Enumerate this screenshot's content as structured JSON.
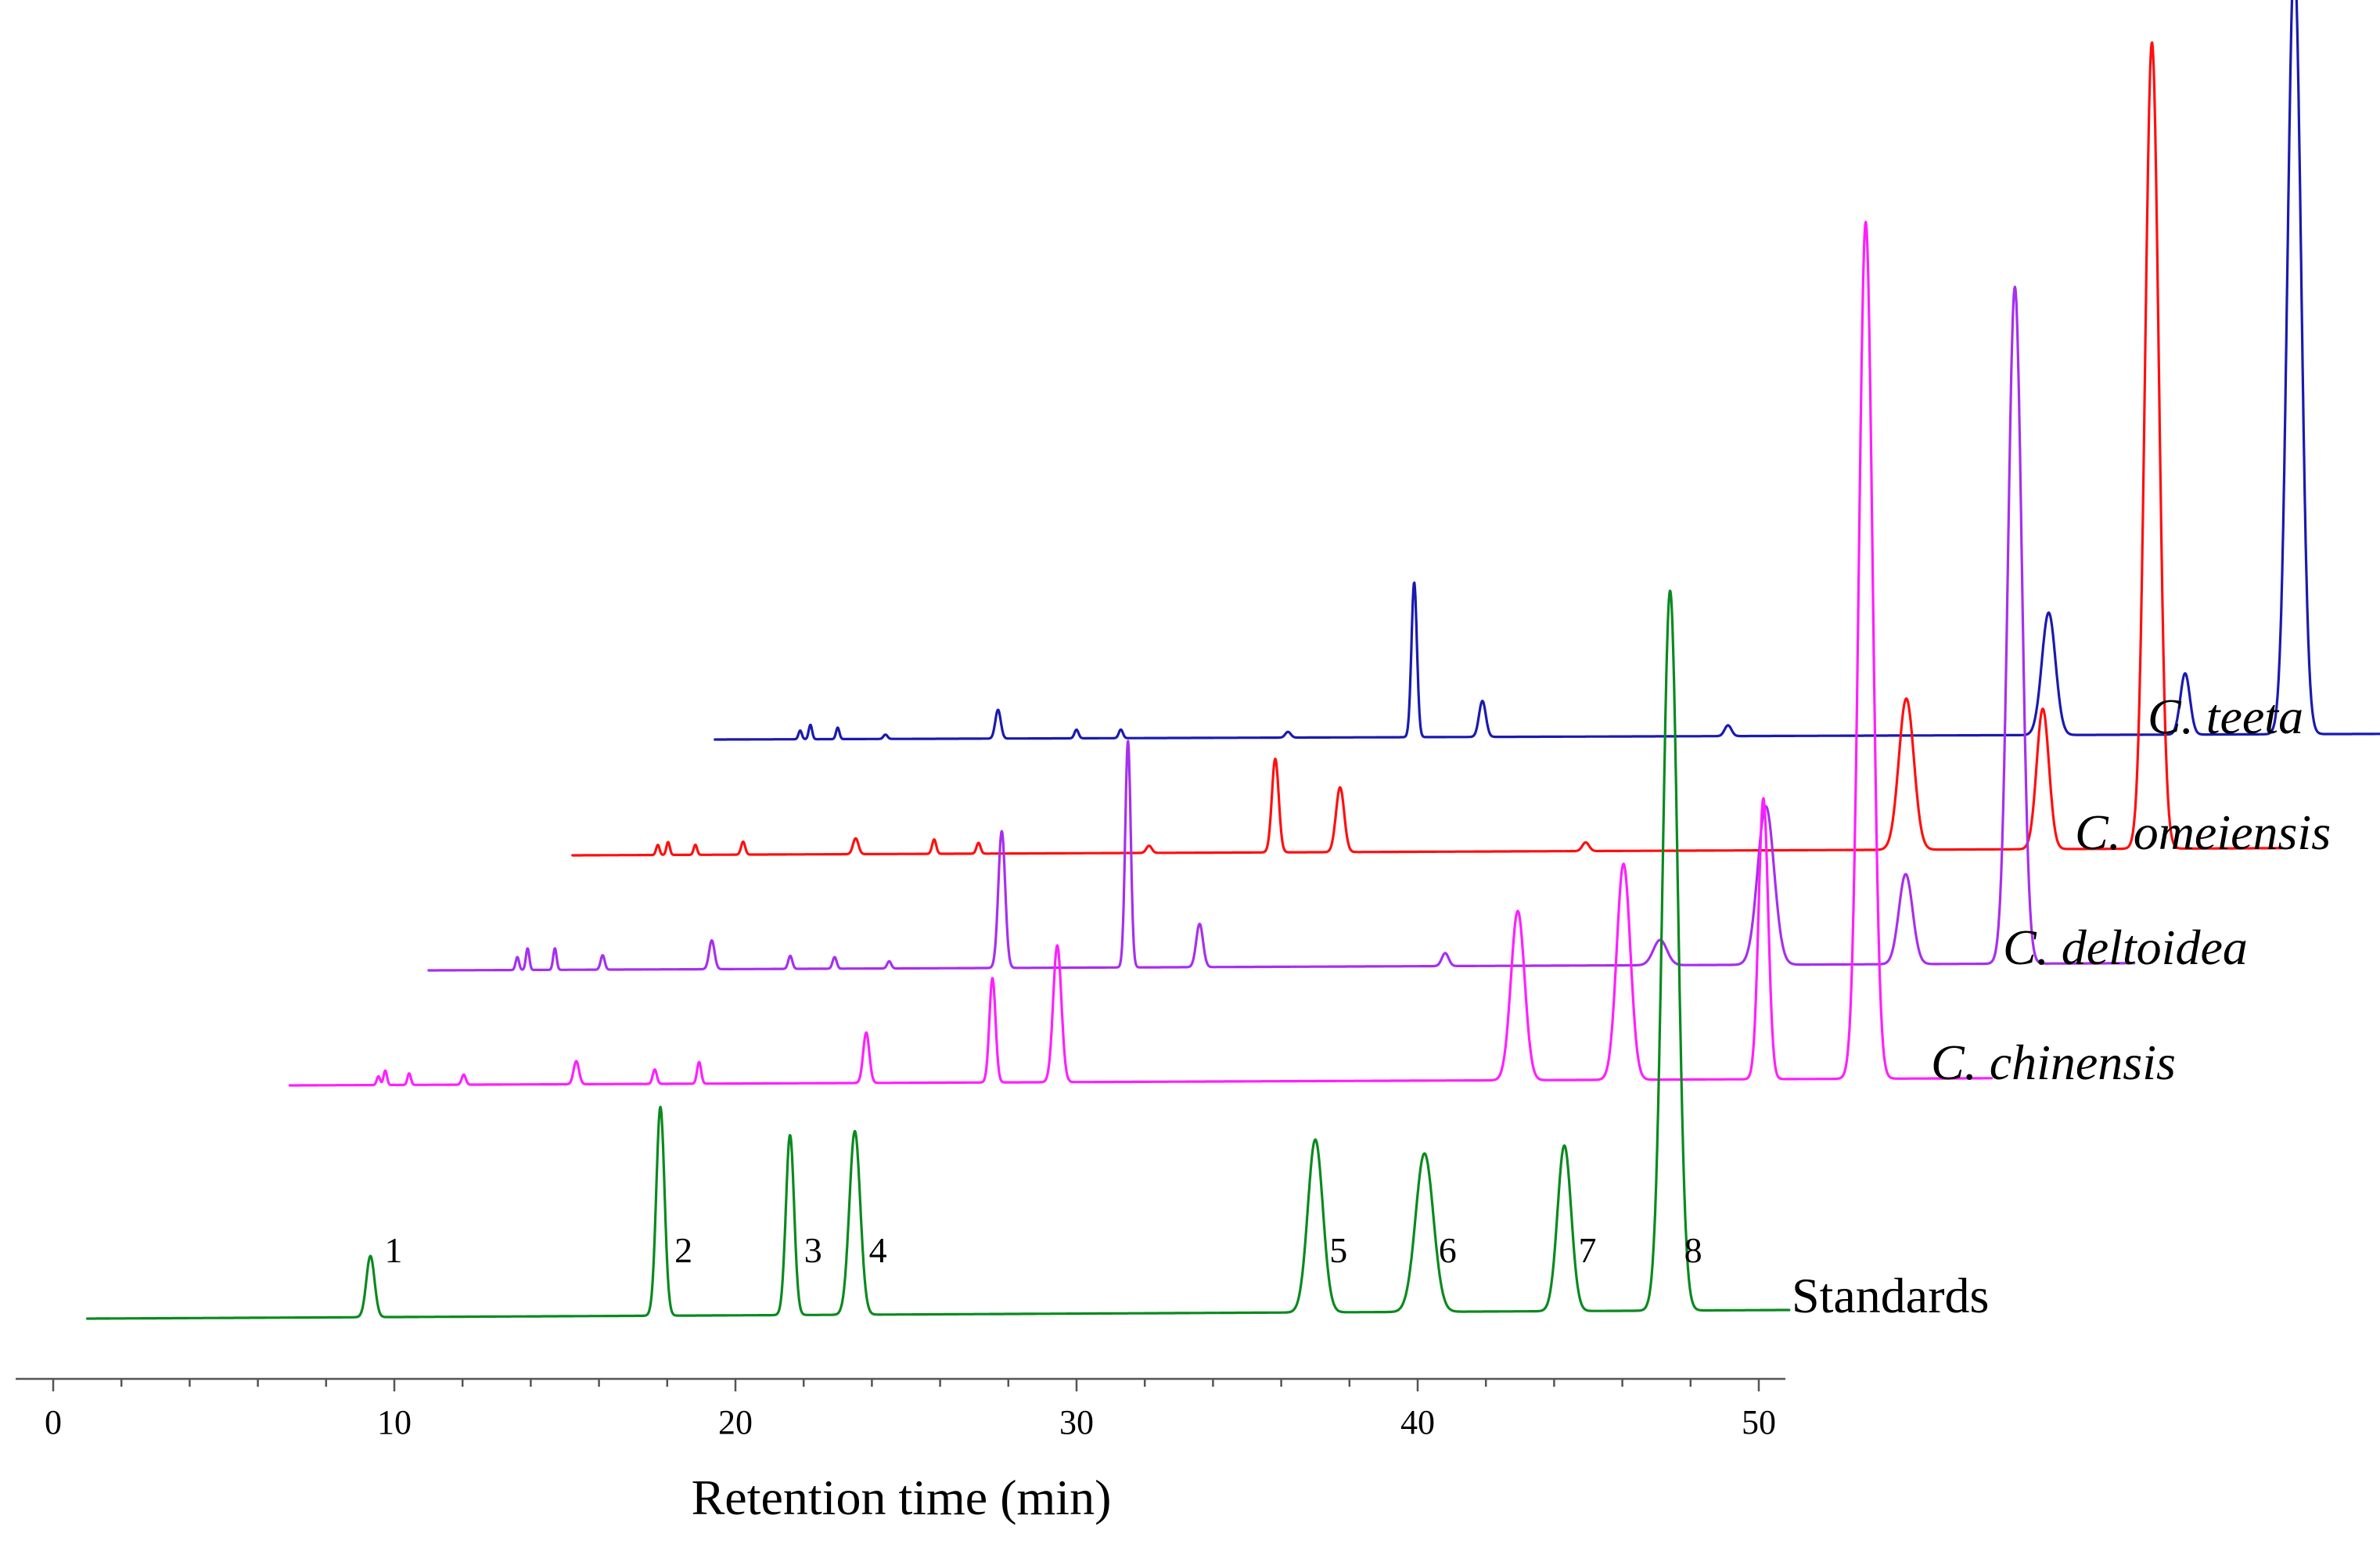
{
  "chart_data": {
    "type": "line",
    "title": "",
    "xlabel": "Retention time (min)",
    "ylabel": "",
    "xlim": [
      0,
      51
    ],
    "x_ticks": [
      0,
      10,
      20,
      30,
      40,
      50
    ],
    "x_minor_step": 2,
    "grid": false,
    "legend": "labels at right end of each trace",
    "series": [
      {
        "name": "Standards",
        "italic": false,
        "color": "#0a8a1f",
        "x_range": [
          1,
          50.9
        ],
        "baseline_drift": 0.012,
        "peaks": [
          {
            "x": 9.3,
            "h": 0.085,
            "w": 0.12
          },
          {
            "x": 17.8,
            "h": 0.29,
            "w": 0.12
          },
          {
            "x": 21.6,
            "h": 0.25,
            "w": 0.12
          },
          {
            "x": 23.5,
            "h": 0.255,
            "w": 0.16
          },
          {
            "x": 37.0,
            "h": 0.24,
            "w": 0.22
          },
          {
            "x": 40.2,
            "h": 0.22,
            "w": 0.26
          },
          {
            "x": 44.3,
            "h": 0.23,
            "w": 0.2
          },
          {
            "x": 47.4,
            "h": 1.0,
            "w": 0.22
          }
        ],
        "peak_labels": [
          "1",
          "2",
          "3",
          "4",
          "5",
          "6",
          "7",
          "8"
        ]
      },
      {
        "name": "C. chinensis",
        "italic": true,
        "color": "#ff1fff",
        "x_range": [
          5.1,
          55.0
        ],
        "baseline_drift": 0.01,
        "peaks": [
          {
            "x": 7.7,
            "h": 0.012,
            "w": 0.05
          },
          {
            "x": 7.9,
            "h": 0.02,
            "w": 0.05
          },
          {
            "x": 8.6,
            "h": 0.016,
            "w": 0.05
          },
          {
            "x": 10.2,
            "h": 0.014,
            "w": 0.06
          },
          {
            "x": 13.5,
            "h": 0.032,
            "w": 0.08
          },
          {
            "x": 15.8,
            "h": 0.02,
            "w": 0.06
          },
          {
            "x": 17.1,
            "h": 0.03,
            "w": 0.06
          },
          {
            "x": 22.0,
            "h": 0.07,
            "w": 0.09
          },
          {
            "x": 25.7,
            "h": 0.145,
            "w": 0.09
          },
          {
            "x": 27.6,
            "h": 0.19,
            "w": 0.12
          },
          {
            "x": 41.1,
            "h": 0.235,
            "w": 0.2
          },
          {
            "x": 44.2,
            "h": 0.3,
            "w": 0.2
          },
          {
            "x": 48.3,
            "h": 0.39,
            "w": 0.14
          },
          {
            "x": 51.3,
            "h": 1.19,
            "w": 0.2
          }
        ]
      },
      {
        "name": "C. deltoidea",
        "italic": true,
        "color": "#a62ff0",
        "x_range": [
          7.2,
          57.2
        ],
        "baseline_drift": 0.01,
        "peaks": [
          {
            "x": 9.8,
            "h": 0.018,
            "w": 0.05
          },
          {
            "x": 10.1,
            "h": 0.03,
            "w": 0.05
          },
          {
            "x": 10.9,
            "h": 0.03,
            "w": 0.05
          },
          {
            "x": 12.3,
            "h": 0.02,
            "w": 0.06
          },
          {
            "x": 15.5,
            "h": 0.04,
            "w": 0.08
          },
          {
            "x": 17.8,
            "h": 0.018,
            "w": 0.06
          },
          {
            "x": 19.1,
            "h": 0.016,
            "w": 0.06
          },
          {
            "x": 20.7,
            "h": 0.01,
            "w": 0.06
          },
          {
            "x": 24.0,
            "h": 0.19,
            "w": 0.1
          },
          {
            "x": 27.7,
            "h": 0.315,
            "w": 0.08
          },
          {
            "x": 29.8,
            "h": 0.06,
            "w": 0.1
          },
          {
            "x": 37.0,
            "h": 0.018,
            "w": 0.1
          },
          {
            "x": 43.3,
            "h": 0.035,
            "w": 0.2
          },
          {
            "x": 46.4,
            "h": 0.22,
            "w": 0.24
          },
          {
            "x": 50.5,
            "h": 0.125,
            "w": 0.2
          },
          {
            "x": 53.7,
            "h": 0.94,
            "w": 0.2
          }
        ]
      },
      {
        "name": "C. omeiensis",
        "italic": true,
        "color": "#ff0f0f",
        "x_range": [
          9.4,
          59.5
        ],
        "baseline_drift": 0.01,
        "peaks": [
          {
            "x": 11.9,
            "h": 0.014,
            "w": 0.05
          },
          {
            "x": 12.2,
            "h": 0.018,
            "w": 0.05
          },
          {
            "x": 13.0,
            "h": 0.014,
            "w": 0.05
          },
          {
            "x": 14.4,
            "h": 0.018,
            "w": 0.06
          },
          {
            "x": 17.7,
            "h": 0.022,
            "w": 0.08
          },
          {
            "x": 20.0,
            "h": 0.02,
            "w": 0.06
          },
          {
            "x": 21.3,
            "h": 0.015,
            "w": 0.06
          },
          {
            "x": 26.3,
            "h": 0.01,
            "w": 0.08
          },
          {
            "x": 30.0,
            "h": 0.13,
            "w": 0.1
          },
          {
            "x": 31.9,
            "h": 0.09,
            "w": 0.12
          },
          {
            "x": 39.1,
            "h": 0.012,
            "w": 0.1
          },
          {
            "x": 48.5,
            "h": 0.21,
            "w": 0.22
          },
          {
            "x": 52.5,
            "h": 0.195,
            "w": 0.18
          },
          {
            "x": 55.7,
            "h": 1.12,
            "w": 0.2
          }
        ]
      },
      {
        "name": "C. teeta",
        "italic": true,
        "color": "#1a1ab0",
        "x_range": [
          11.6,
          61.7
        ],
        "baseline_drift": 0.008,
        "peaks": [
          {
            "x": 14.1,
            "h": 0.012,
            "w": 0.05
          },
          {
            "x": 14.4,
            "h": 0.02,
            "w": 0.05
          },
          {
            "x": 15.2,
            "h": 0.016,
            "w": 0.05
          },
          {
            "x": 16.6,
            "h": 0.006,
            "w": 0.06
          },
          {
            "x": 19.9,
            "h": 0.04,
            "w": 0.08
          },
          {
            "x": 22.2,
            "h": 0.012,
            "w": 0.06
          },
          {
            "x": 23.5,
            "h": 0.012,
            "w": 0.06
          },
          {
            "x": 28.4,
            "h": 0.008,
            "w": 0.08
          },
          {
            "x": 32.1,
            "h": 0.215,
            "w": 0.08
          },
          {
            "x": 34.1,
            "h": 0.05,
            "w": 0.1
          },
          {
            "x": 41.3,
            "h": 0.015,
            "w": 0.1
          },
          {
            "x": 50.7,
            "h": 0.17,
            "w": 0.2
          },
          {
            "x": 54.7,
            "h": 0.085,
            "w": 0.14
          },
          {
            "x": 57.9,
            "h": 1.08,
            "w": 0.2
          }
        ]
      }
    ]
  }
}
